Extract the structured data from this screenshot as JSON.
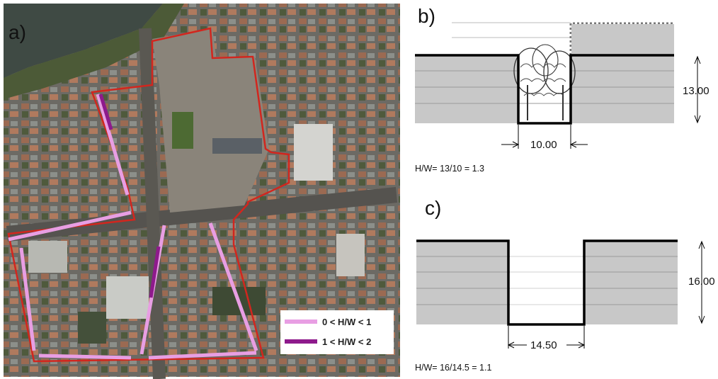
{
  "panels": {
    "a": {
      "label": "a)",
      "legend": [
        {
          "text": "0 < H/W < 1",
          "color": "#e89ee3"
        },
        {
          "text": "1 < H/W < 2",
          "color": "#8e1a8c"
        }
      ],
      "colors": {
        "boundary": "#d2261e",
        "light": "#e89ee3",
        "dark": "#8e1a8c"
      }
    },
    "b": {
      "label": "b)",
      "height_label": "13.00",
      "width_label": "10.00",
      "ratio": "H/W= 13/10 = 1.3"
    },
    "c": {
      "label": "c)",
      "height_label": "16.00",
      "width_label": "14.50",
      "ratio": "H/W= 16/14.5 = 1.1"
    }
  }
}
